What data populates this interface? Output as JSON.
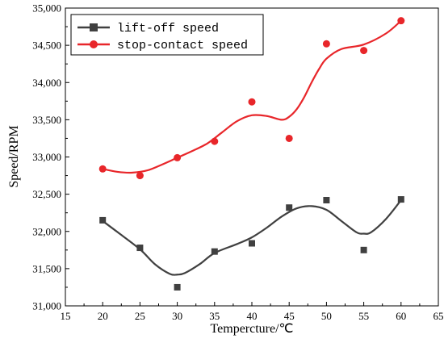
{
  "chart_data": {
    "type": "scatter",
    "title": "",
    "xlabel": "Tempercture/℃",
    "ylabel": "Speed/RPM",
    "xlim": [
      15,
      65
    ],
    "ylim": [
      31000,
      35000
    ],
    "xticks": [
      15,
      20,
      25,
      30,
      35,
      40,
      45,
      50,
      55,
      60,
      65
    ],
    "yticks": [
      31000,
      31500,
      32000,
      32500,
      33000,
      33500,
      34000,
      34500,
      35000
    ],
    "ytick_labels": [
      "31,000",
      "31,500",
      "32,000",
      "32,500",
      "33,000",
      "33,500",
      "34,000",
      "34,500",
      "35,000"
    ],
    "grid": false,
    "legend_position": "top-left",
    "fitted_curves": true,
    "x": [
      20,
      25,
      30,
      35,
      40,
      45,
      50,
      55,
      60
    ],
    "series": [
      {
        "name": "lift-off speed",
        "marker": "square",
        "color": "#404040",
        "values": [
          32150,
          31780,
          31250,
          31730,
          31840,
          32320,
          32420,
          31750,
          32430
        ],
        "curve": [
          [
            20,
            32140
          ],
          [
            22,
            31990
          ],
          [
            25,
            31760
          ],
          [
            27,
            31560
          ],
          [
            29,
            31430
          ],
          [
            30,
            31420
          ],
          [
            31,
            31440
          ],
          [
            33,
            31560
          ],
          [
            35,
            31710
          ],
          [
            38,
            31830
          ],
          [
            40,
            31920
          ],
          [
            42,
            32050
          ],
          [
            44,
            32200
          ],
          [
            46,
            32310
          ],
          [
            48,
            32340
          ],
          [
            50,
            32290
          ],
          [
            52,
            32140
          ],
          [
            54,
            31990
          ],
          [
            55,
            31970
          ],
          [
            56,
            31990
          ],
          [
            58,
            32170
          ],
          [
            60,
            32420
          ]
        ]
      },
      {
        "name": "stop-contact speed",
        "marker": "circle",
        "color": "#e8262a",
        "values": [
          32840,
          32750,
          32990,
          33210,
          33740,
          33250,
          34520,
          34430,
          34830
        ],
        "curve": [
          [
            20,
            32840
          ],
          [
            22,
            32800
          ],
          [
            24,
            32790
          ],
          [
            26,
            32820
          ],
          [
            28,
            32900
          ],
          [
            30,
            32990
          ],
          [
            32,
            33080
          ],
          [
            34,
            33180
          ],
          [
            36,
            33330
          ],
          [
            38,
            33480
          ],
          [
            40,
            33560
          ],
          [
            42,
            33550
          ],
          [
            44,
            33500
          ],
          [
            45,
            33540
          ],
          [
            46,
            33640
          ],
          [
            47,
            33800
          ],
          [
            48,
            34000
          ],
          [
            49,
            34180
          ],
          [
            50,
            34320
          ],
          [
            52,
            34450
          ],
          [
            55,
            34510
          ],
          [
            58,
            34660
          ],
          [
            60,
            34830
          ]
        ]
      }
    ]
  }
}
